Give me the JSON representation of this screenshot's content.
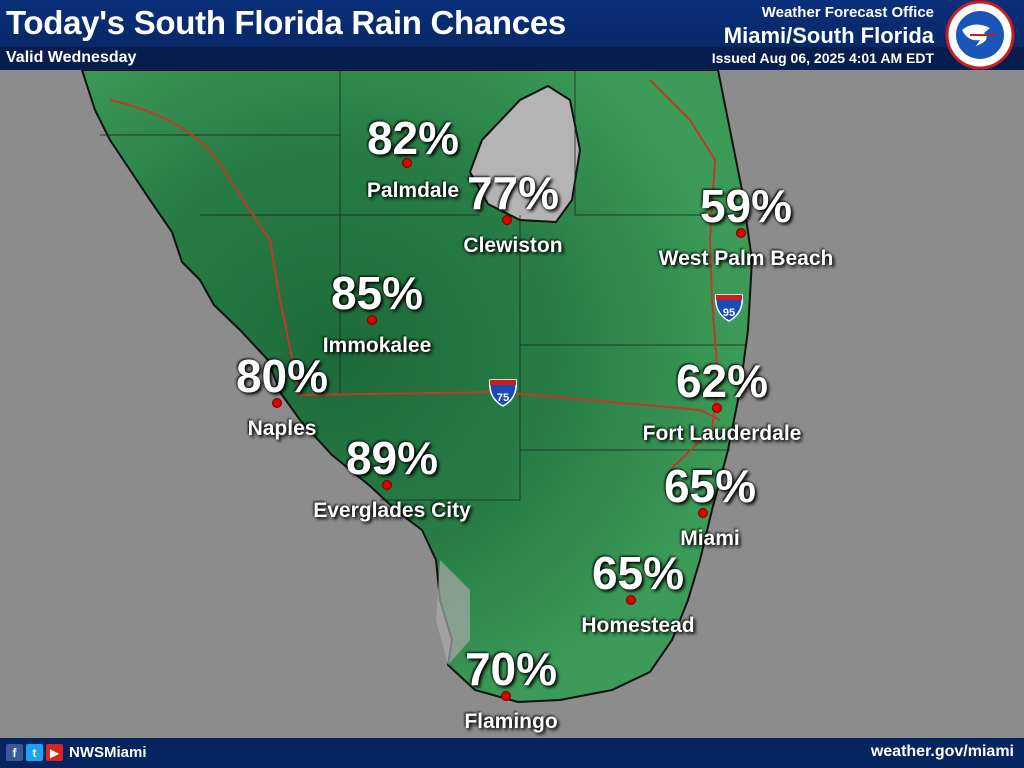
{
  "header": {
    "title": "Today's South Florida Rain Chances",
    "valid": "Valid Wednesday",
    "office_line1": "Weather Forecast Office",
    "office_line2": "Miami/South Florida",
    "issued": "Issued Aug 06, 2025 4:01 AM EDT",
    "logo_icon": "noaa-nws-logo-icon"
  },
  "highways": {
    "i75": "75",
    "i95": "95",
    "interstate_label": "INTERSTATE"
  },
  "cities": [
    {
      "name": "Palmdale",
      "pct": "82%"
    },
    {
      "name": "Clewiston",
      "pct": "77%"
    },
    {
      "name": "West Palm Beach",
      "pct": "59%"
    },
    {
      "name": "Immokalee",
      "pct": "85%"
    },
    {
      "name": "Naples",
      "pct": "80%"
    },
    {
      "name": "Fort Lauderdale",
      "pct": "62%"
    },
    {
      "name": "Everglades City",
      "pct": "89%"
    },
    {
      "name": "Miami",
      "pct": "65%"
    },
    {
      "name": "Homestead",
      "pct": "65%"
    },
    {
      "name": "Flamingo",
      "pct": "70%"
    }
  ],
  "footer": {
    "facebook_icon": "f",
    "twitter_icon": "t",
    "youtube_icon": "▶",
    "handle": "NWSMiami",
    "site": "weather.gov/miami"
  },
  "colors": {
    "water": "#8c8c8c",
    "land_light": "#3fa35e",
    "land_dark": "#1d6b3b",
    "lake": "#b4b4b4",
    "header": "#0a2f7a"
  }
}
